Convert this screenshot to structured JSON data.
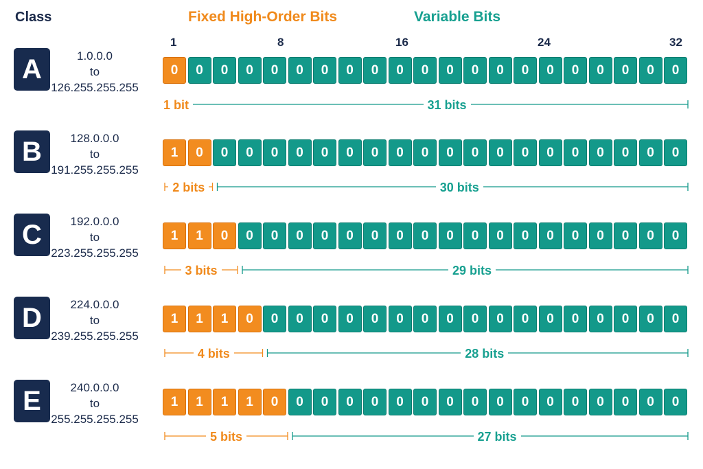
{
  "header": {
    "class_label": "Class",
    "fixed_label": "Fixed High-Order Bits",
    "variable_label": "Variable Bits"
  },
  "bit_positions": [
    "1",
    "8",
    "16",
    "24",
    "32"
  ],
  "colors": {
    "fixed": "#f28c1f",
    "variable": "#13998a",
    "badge": "#182b4e"
  },
  "classes": [
    {
      "letter": "A",
      "range_start": "1.0.0.0",
      "range_to": "to",
      "range_end": "126.255.255.255",
      "fixed_bits": [
        "0"
      ],
      "variable_bit_value": "0",
      "fixed_label": "1 bit",
      "variable_label": "31 bits"
    },
    {
      "letter": "B",
      "range_start": "128.0.0.0",
      "range_to": "to",
      "range_end": "191.255.255.255",
      "fixed_bits": [
        "1",
        "0"
      ],
      "variable_bit_value": "0",
      "fixed_label": "2 bits",
      "variable_label": "30 bits"
    },
    {
      "letter": "C",
      "range_start": "192.0.0.0",
      "range_to": "to",
      "range_end": "223.255.255.255",
      "fixed_bits": [
        "1",
        "1",
        "0"
      ],
      "variable_bit_value": "0",
      "fixed_label": "3 bits",
      "variable_label": "29 bits"
    },
    {
      "letter": "D",
      "range_start": "224.0.0.0",
      "range_to": "to",
      "range_end": "239.255.255.255",
      "fixed_bits": [
        "1",
        "1",
        "1",
        "0"
      ],
      "variable_bit_value": "0",
      "fixed_label": "4 bits",
      "variable_label": "28 bits"
    },
    {
      "letter": "E",
      "range_start": "240.0.0.0",
      "range_to": "to",
      "range_end": "255.255.255.255",
      "fixed_bits": [
        "1",
        "1",
        "1",
        "1",
        "0"
      ],
      "variable_bit_value": "0",
      "fixed_label": "5 bits",
      "variable_label": "27 bits"
    }
  ]
}
